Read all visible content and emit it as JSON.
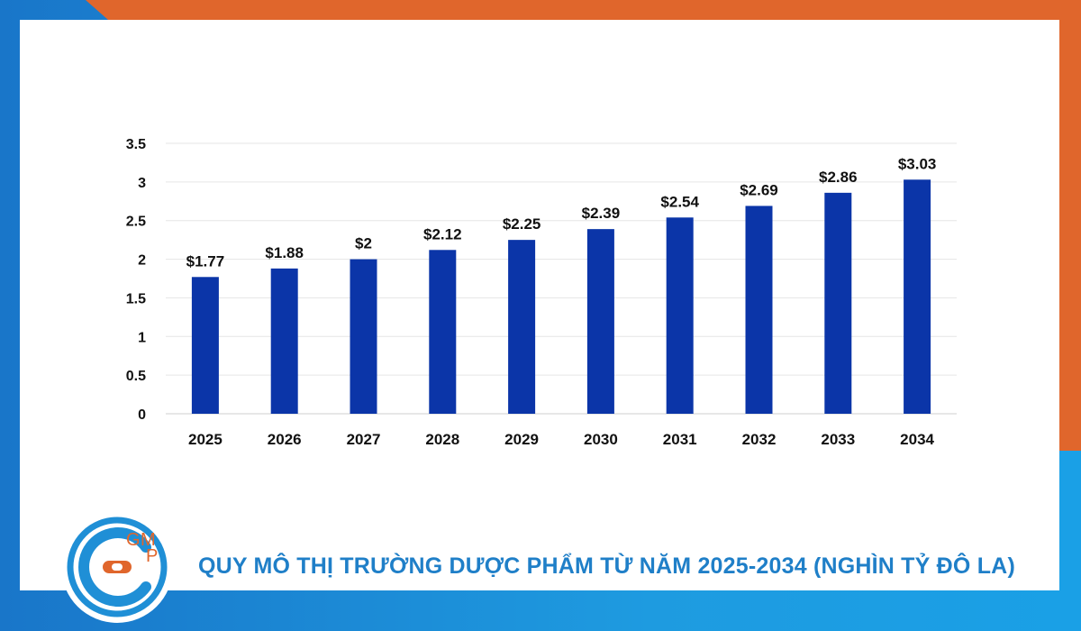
{
  "colors": {
    "bar": "#0b35a8",
    "accent_orange": "#e0662c",
    "accent_blue": "#1f8fd6",
    "caption": "#1f7fc8",
    "grid": "#e6e6e6",
    "text": "#111111"
  },
  "logo": {
    "text": "GMP",
    "icon": "gmp-logo-icon"
  },
  "caption": "QUY MÔ THỊ TRƯỜNG DƯỢC PHẨM TỪ NĂM 2025-2034 (NGHÌN TỶ ĐÔ LA)",
  "chart_data": {
    "type": "bar",
    "title": "",
    "xlabel": "",
    "ylabel": "",
    "categories": [
      "2025",
      "2026",
      "2027",
      "2028",
      "2029",
      "2030",
      "2031",
      "2032",
      "2033",
      "2034"
    ],
    "values": [
      1.77,
      1.88,
      2,
      2.12,
      2.25,
      2.39,
      2.54,
      2.69,
      2.86,
      3.03
    ],
    "data_labels": [
      "$1.77",
      "$1.88",
      "$2",
      "$2.12",
      "$2.25",
      "$2.39",
      "$2.54",
      "$2.69",
      "$2.86",
      "$3.03"
    ],
    "ylim": [
      0,
      3.5
    ],
    "yticks": [
      "0",
      "0.5",
      "1",
      "1.5",
      "2",
      "2.5",
      "3",
      "3.5"
    ],
    "grid": true,
    "legend": "none"
  }
}
